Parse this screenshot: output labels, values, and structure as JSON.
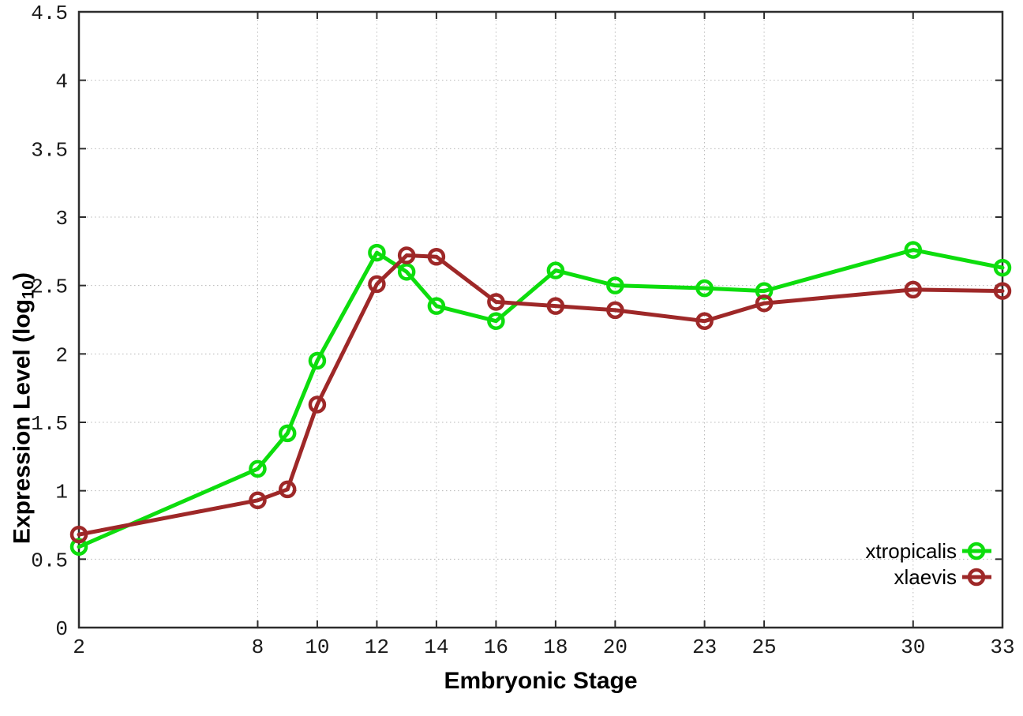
{
  "chart": {
    "xlabel": "Embryonic Stage",
    "ylabel": {
      "pre": "Expression Level (log",
      "sub": "10",
      "post": ")"
    },
    "colors": {
      "background": "#ffffff",
      "border": "#2d2d2d",
      "grid": "#b8b8b8",
      "tick_label": "#1a1a1a",
      "axis_title": "#000000",
      "legend_text": "#000000"
    }
  },
  "chart_data": {
    "type": "line",
    "title": "",
    "xlabel": "Embryonic Stage",
    "ylabel": "Expression Level (log10)",
    "xlim": [
      2,
      33
    ],
    "ylim": [
      0,
      4.5
    ],
    "grid": true,
    "legend_position": "bottom-right",
    "x_ticks": [
      2,
      8,
      10,
      12,
      14,
      16,
      18,
      20,
      23,
      25,
      30,
      33
    ],
    "y_ticks": [
      0,
      0.5,
      1,
      1.5,
      2,
      2.5,
      3,
      3.5,
      4,
      4.5
    ],
    "x": [
      2,
      8,
      9,
      10,
      12,
      13,
      14,
      16,
      18,
      20,
      23,
      25,
      30,
      33
    ],
    "series": [
      {
        "name": "xtropicalis",
        "color": "#0ddd0d",
        "values": [
          0.59,
          1.16,
          1.42,
          1.95,
          2.74,
          2.6,
          2.35,
          2.24,
          2.61,
          2.5,
          2.48,
          2.46,
          2.76,
          2.63
        ]
      },
      {
        "name": "xlaevis",
        "color": "#9e2828",
        "values": [
          0.68,
          0.93,
          1.01,
          1.63,
          2.51,
          2.72,
          2.71,
          2.38,
          2.35,
          2.32,
          2.24,
          2.37,
          2.47,
          2.46
        ]
      }
    ]
  }
}
